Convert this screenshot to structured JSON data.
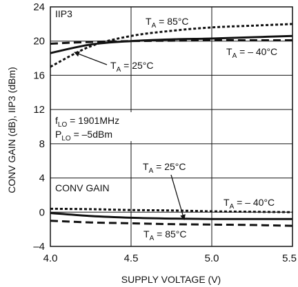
{
  "chart_data": {
    "type": "line",
    "xlabel": "SUPPLY VOLTAGE (V)",
    "ylabel": "CONV GAIN (dB), IIP3 (dBm)",
    "xlim": [
      4.0,
      5.5
    ],
    "ylim": [
      -4,
      24
    ],
    "x_ticks": [
      "4.0",
      "4.5",
      "5.0",
      "5.5"
    ],
    "y_ticks": [
      "–4",
      "0",
      "4",
      "8",
      "12",
      "16",
      "20",
      "24"
    ],
    "grid": true,
    "series": [
      {
        "name": "IIP3 T_A = 85°C",
        "style": "dotted",
        "x": [
          4.0,
          4.25,
          4.5,
          4.75,
          5.0,
          5.25,
          5.5
        ],
        "y": [
          17.0,
          19.4,
          20.6,
          21.2,
          21.6,
          21.8,
          22.0
        ]
      },
      {
        "name": "IIP3 T_A = 25°C",
        "style": "solid",
        "x": [
          4.0,
          4.25,
          4.5,
          4.75,
          5.0,
          5.25,
          5.5
        ],
        "y": [
          18.6,
          19.6,
          20.0,
          20.2,
          20.3,
          20.45,
          20.6
        ]
      },
      {
        "name": "IIP3 T_A = –40°C",
        "style": "dashed",
        "x": [
          4.0,
          4.25,
          4.5,
          4.75,
          5.0,
          5.25,
          5.5
        ],
        "y": [
          19.7,
          19.9,
          20.0,
          20.05,
          20.1,
          20.1,
          20.1
        ]
      },
      {
        "name": "CONV GAIN T_A = –40°C",
        "style": "dotted",
        "x": [
          4.0,
          4.25,
          4.5,
          4.75,
          5.0,
          5.25,
          5.5
        ],
        "y": [
          0.4,
          0.35,
          0.25,
          0.2,
          0.1,
          0.05,
          0.0
        ]
      },
      {
        "name": "CONV GAIN T_A = 25°C",
        "style": "solid",
        "x": [
          4.0,
          4.25,
          4.5,
          4.75,
          5.0,
          5.25,
          5.5
        ],
        "y": [
          -0.1,
          -0.45,
          -0.65,
          -0.75,
          -0.8,
          -0.8,
          -0.8
        ]
      },
      {
        "name": "CONV GAIN T_A = 85°C",
        "style": "dashed",
        "x": [
          4.0,
          4.25,
          4.5,
          4.75,
          5.0,
          5.25,
          5.5
        ],
        "y": [
          -1.0,
          -1.2,
          -1.3,
          -1.4,
          -1.45,
          -1.5,
          -1.6
        ]
      }
    ],
    "annotations": {
      "iip3_title": "IIP3",
      "conv_gain_title": "CONV GAIN",
      "flo": {
        "base": "f",
        "sub": "LO",
        "rest": " = 1901MHz"
      },
      "plo": {
        "base": "P",
        "sub": "LO",
        "rest": " = –5dBm"
      },
      "iip3_85": {
        "base": "T",
        "sub": "A",
        "rest": " = 85°C"
      },
      "iip3_25": {
        "base": "T",
        "sub": "A",
        "rest": " = 25°C"
      },
      "iip3_m40": {
        "base": "T",
        "sub": "A",
        "rest": " = – 40°C"
      },
      "cg_25": {
        "base": "T",
        "sub": "A",
        "rest": " = 25°C"
      },
      "cg_m40": {
        "base": "T",
        "sub": "A",
        "rest": " = – 40°C"
      },
      "cg_85": {
        "base": "T",
        "sub": "A",
        "rest": " = 85°C"
      }
    },
    "colors": {
      "line": "#111111",
      "grid": "#111111",
      "background": "#ffffff"
    }
  }
}
